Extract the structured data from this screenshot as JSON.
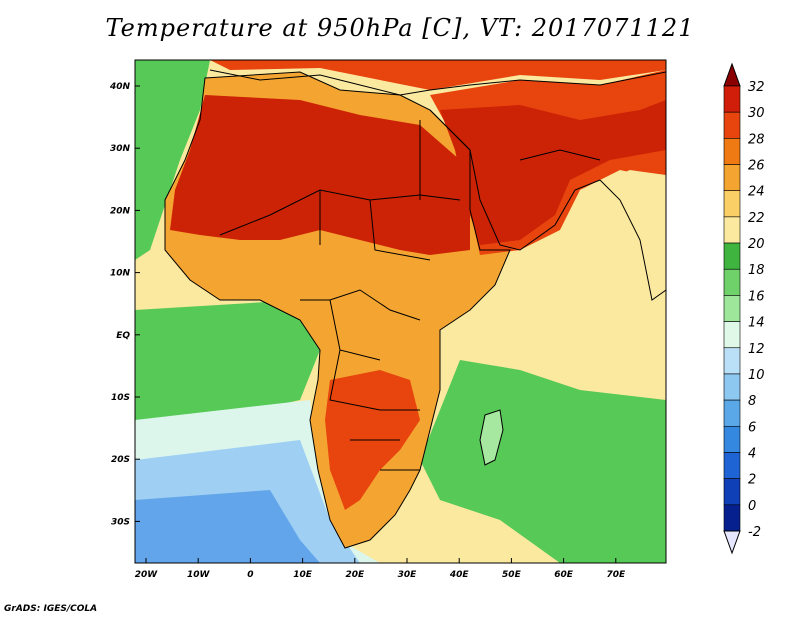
{
  "title": "Temperature at 950hPa [C], VT: 2017071121",
  "credit": "GrADS: IGES/COLA",
  "lon_ticks": [
    "20W",
    "10W",
    "0",
    "10E",
    "20E",
    "30E",
    "40E",
    "50E",
    "60E",
    "70E"
  ],
  "lat_ticks": [
    "40N",
    "30N",
    "20N",
    "10N",
    "EQ",
    "10S",
    "20S",
    "30S"
  ],
  "colorbar": {
    "labels": [
      "32",
      "30",
      "28",
      "26",
      "24",
      "22",
      "20",
      "18",
      "16",
      "14",
      "12",
      "10",
      "8",
      "6",
      "4",
      "2",
      "0",
      "-2"
    ],
    "colors": [
      "#8b0000",
      "#d11e0b",
      "#e8440e",
      "#ef7a14",
      "#f4a431",
      "#f9cf66",
      "#fbe9a0",
      "#3fb53f",
      "#6fd16a",
      "#9ee79a",
      "#dff8e8",
      "#b9e0f7",
      "#8cc8f0",
      "#5aa8e8",
      "#3588e0",
      "#1f64d4",
      "#1040b8",
      "#06208e",
      "#e6e6ff"
    ]
  },
  "map_colors": {
    "ocean_cold": "#62a5ea",
    "ocean_cool": "#9fd0f4",
    "ocean_pale": "#dcf6ec",
    "ocean_green_light": "#a6e8a0",
    "ocean_green": "#57c957",
    "ocean_warm": "#fbe9a0",
    "land_warm": "#f4a431",
    "land_hot": "#e8440e",
    "land_veryhot": "#cc2205",
    "border": "#000000"
  }
}
